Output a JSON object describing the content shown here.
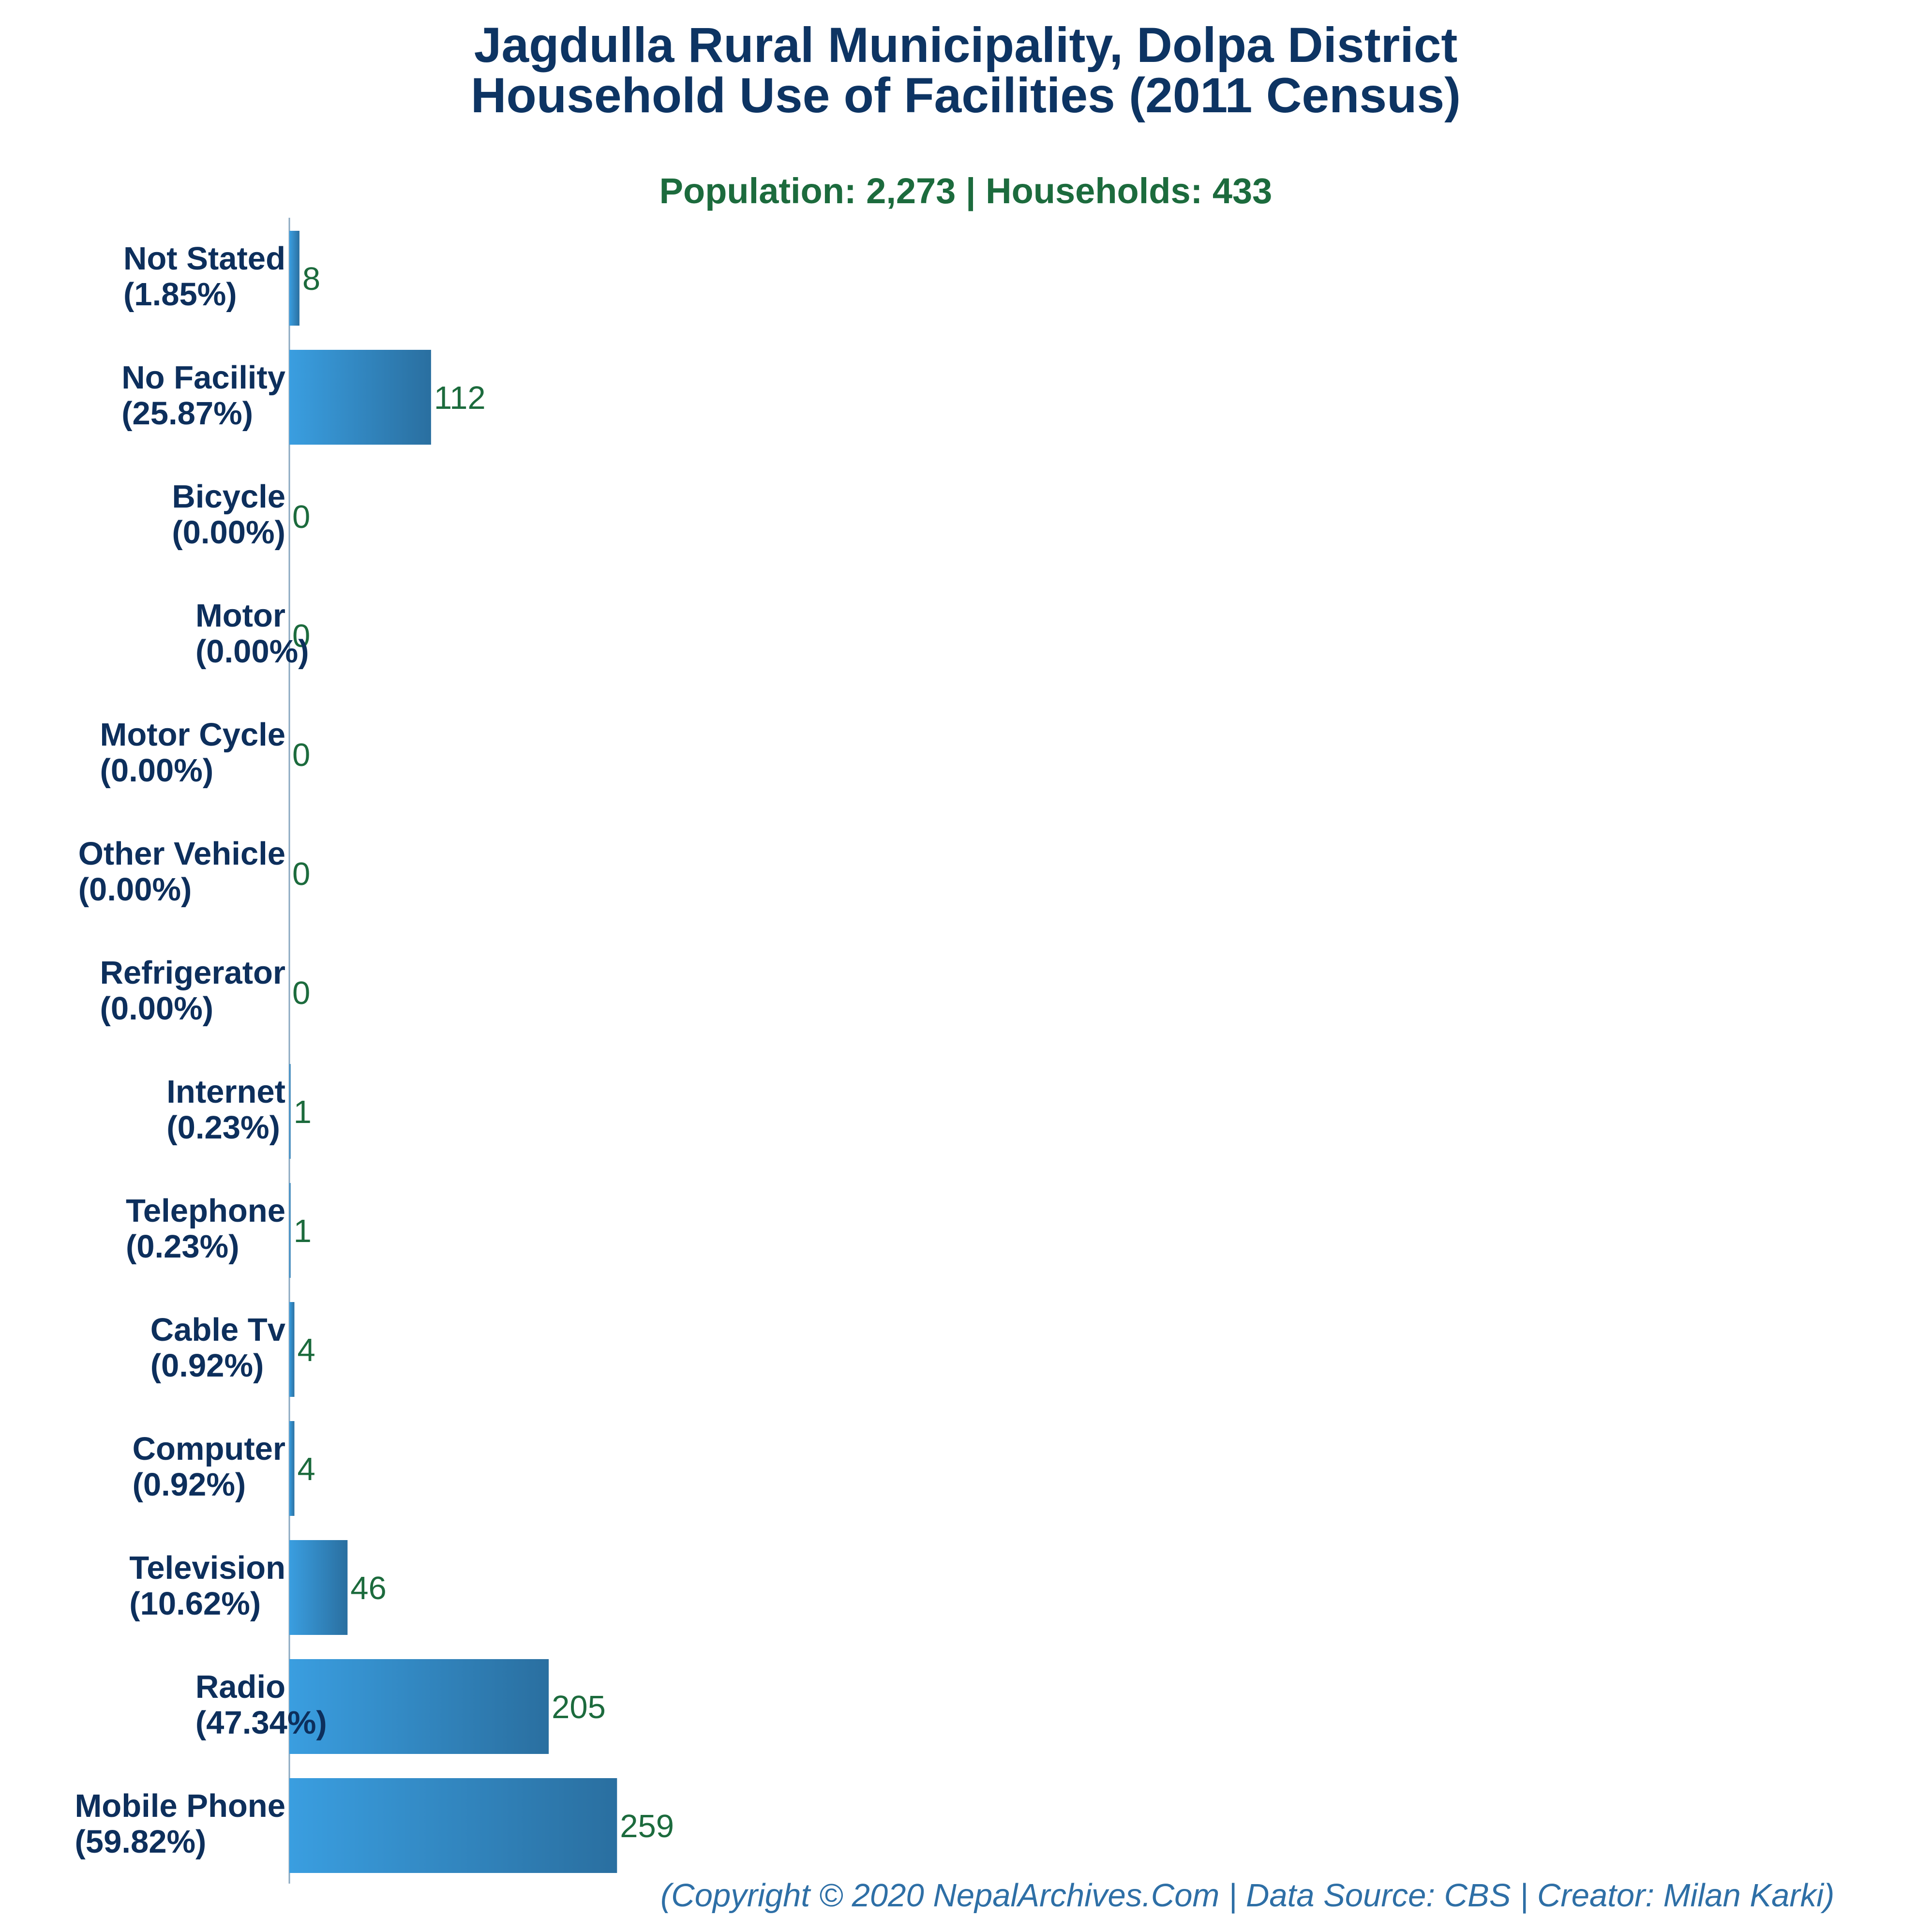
{
  "chart_data": {
    "type": "bar",
    "orientation": "horizontal",
    "title_lines": [
      "Jagdulla Rural Municipality, Dolpa District",
      "Household Use of Facilities (2011 Census)"
    ],
    "subtitle": "Population: 2,273 | Households: 433",
    "categories": [
      "Not Stated",
      "No Facility",
      "Bicycle",
      "Motor",
      "Motor Cycle",
      "Other Vehicle",
      "Refrigerator",
      "Internet",
      "Telephone",
      "Cable Tv",
      "Computer",
      "Television",
      "Radio",
      "Mobile Phone"
    ],
    "percent_labels": [
      "(1.85%)",
      "(25.87%)",
      "(0.00%)",
      "(0.00%)",
      "(0.00%)",
      "(0.00%)",
      "(0.00%)",
      "(0.23%)",
      "(0.23%)",
      "(0.92%)",
      "(0.92%)",
      "(10.62%)",
      "(47.34%)",
      "(59.82%)"
    ],
    "values": [
      8,
      112,
      0,
      0,
      0,
      0,
      0,
      1,
      1,
      4,
      4,
      46,
      205,
      259
    ],
    "xlim": [
      0,
      1000
    ],
    "grid": false,
    "legend": "none",
    "colors": {
      "bar_light": "#3a9ee0",
      "bar_dark": "#2a6fa0",
      "title": "#0d3463",
      "subtitle": "#1c6b3d",
      "category": "#0d2f5c",
      "value": "#1c6b3d",
      "footer": "#2e6fa6",
      "axis": "#8aa8c0"
    },
    "footer": "(Copyright © 2020 NepalArchives.Com | Data Source: CBS | Creator: Milan Karki)"
  }
}
